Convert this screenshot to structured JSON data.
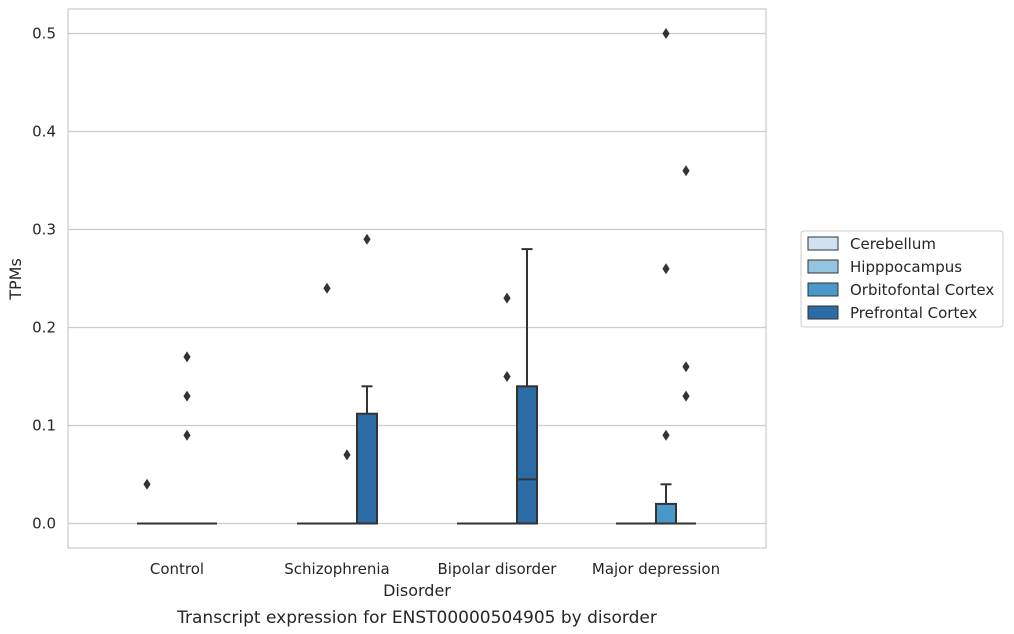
{
  "caption": "Transcript expression for ENST00000504905 by disorder",
  "chart_data": {
    "type": "box",
    "xlabel": "Disorder",
    "ylabel": "TPMs",
    "ylim": [
      -0.025,
      0.525
    ],
    "yticks": [
      0.0,
      0.1,
      0.2,
      0.3,
      0.4,
      0.5
    ],
    "ytick_labels": [
      "0.0",
      "0.1",
      "0.2",
      "0.3",
      "0.4",
      "0.5"
    ],
    "grid": "horizontal",
    "legend_placement": "right",
    "categories": [
      "Control",
      "Schizophrenia",
      "Bipolar disorder",
      "Major depression"
    ],
    "series": [
      {
        "name": "Cerebellum",
        "color": "#d0e1f2",
        "boxes": [
          {
            "q1": 0,
            "median": 0,
            "q3": 0,
            "whislo": 0,
            "whishi": 0,
            "fliers": [
              0.04
            ]
          },
          {
            "q1": 0,
            "median": 0,
            "q3": 0,
            "whislo": 0,
            "whishi": 0,
            "fliers": []
          },
          {
            "q1": 0,
            "median": 0,
            "q3": 0,
            "whislo": 0,
            "whishi": 0,
            "fliers": []
          },
          {
            "q1": 0,
            "median": 0,
            "q3": 0,
            "whislo": 0,
            "whishi": 0,
            "fliers": []
          }
        ]
      },
      {
        "name": "Hipppocampus",
        "color": "#94c4df",
        "boxes": [
          {
            "q1": 0,
            "median": 0,
            "q3": 0,
            "whislo": 0,
            "whishi": 0,
            "fliers": []
          },
          {
            "q1": 0,
            "median": 0,
            "q3": 0,
            "whislo": 0,
            "whishi": 0,
            "fliers": [
              0.24
            ]
          },
          {
            "q1": 0,
            "median": 0,
            "q3": 0,
            "whislo": 0,
            "whishi": 0,
            "fliers": []
          },
          {
            "q1": 0,
            "median": 0,
            "q3": 0,
            "whislo": 0,
            "whishi": 0,
            "fliers": []
          }
        ]
      },
      {
        "name": "Orbitofontal Cortex",
        "color": "#4a98c9",
        "boxes": [
          {
            "q1": 0,
            "median": 0,
            "q3": 0,
            "whislo": 0,
            "whishi": 0,
            "fliers": [
              0.09,
              0.13,
              0.17
            ]
          },
          {
            "q1": 0,
            "median": 0,
            "q3": 0,
            "whislo": 0,
            "whishi": 0,
            "fliers": [
              0.07
            ]
          },
          {
            "q1": 0,
            "median": 0,
            "q3": 0,
            "whislo": 0,
            "whishi": 0,
            "fliers": [
              0.15,
              0.23
            ]
          },
          {
            "q1": 0,
            "median": 0,
            "q3": 0.02,
            "whislo": 0,
            "whishi": 0.04,
            "fliers": [
              0.09,
              0.26,
              0.5
            ]
          }
        ]
      },
      {
        "name": "Prefrontal Cortex",
        "color": "#2b6ba6",
        "boxes": [
          {
            "q1": 0,
            "median": 0,
            "q3": 0,
            "whislo": 0,
            "whishi": 0,
            "fliers": []
          },
          {
            "q1": 0,
            "median": 0,
            "q3": 0.112,
            "whislo": 0,
            "whishi": 0.14,
            "fliers": [
              0.29
            ]
          },
          {
            "q1": 0,
            "median": 0.045,
            "q3": 0.14,
            "whislo": 0,
            "whishi": 0.28,
            "fliers": []
          },
          {
            "q1": 0,
            "median": 0,
            "q3": 0,
            "whislo": 0,
            "whishi": 0,
            "fliers": [
              0.13,
              0.16,
              0.36
            ]
          }
        ]
      }
    ]
  }
}
